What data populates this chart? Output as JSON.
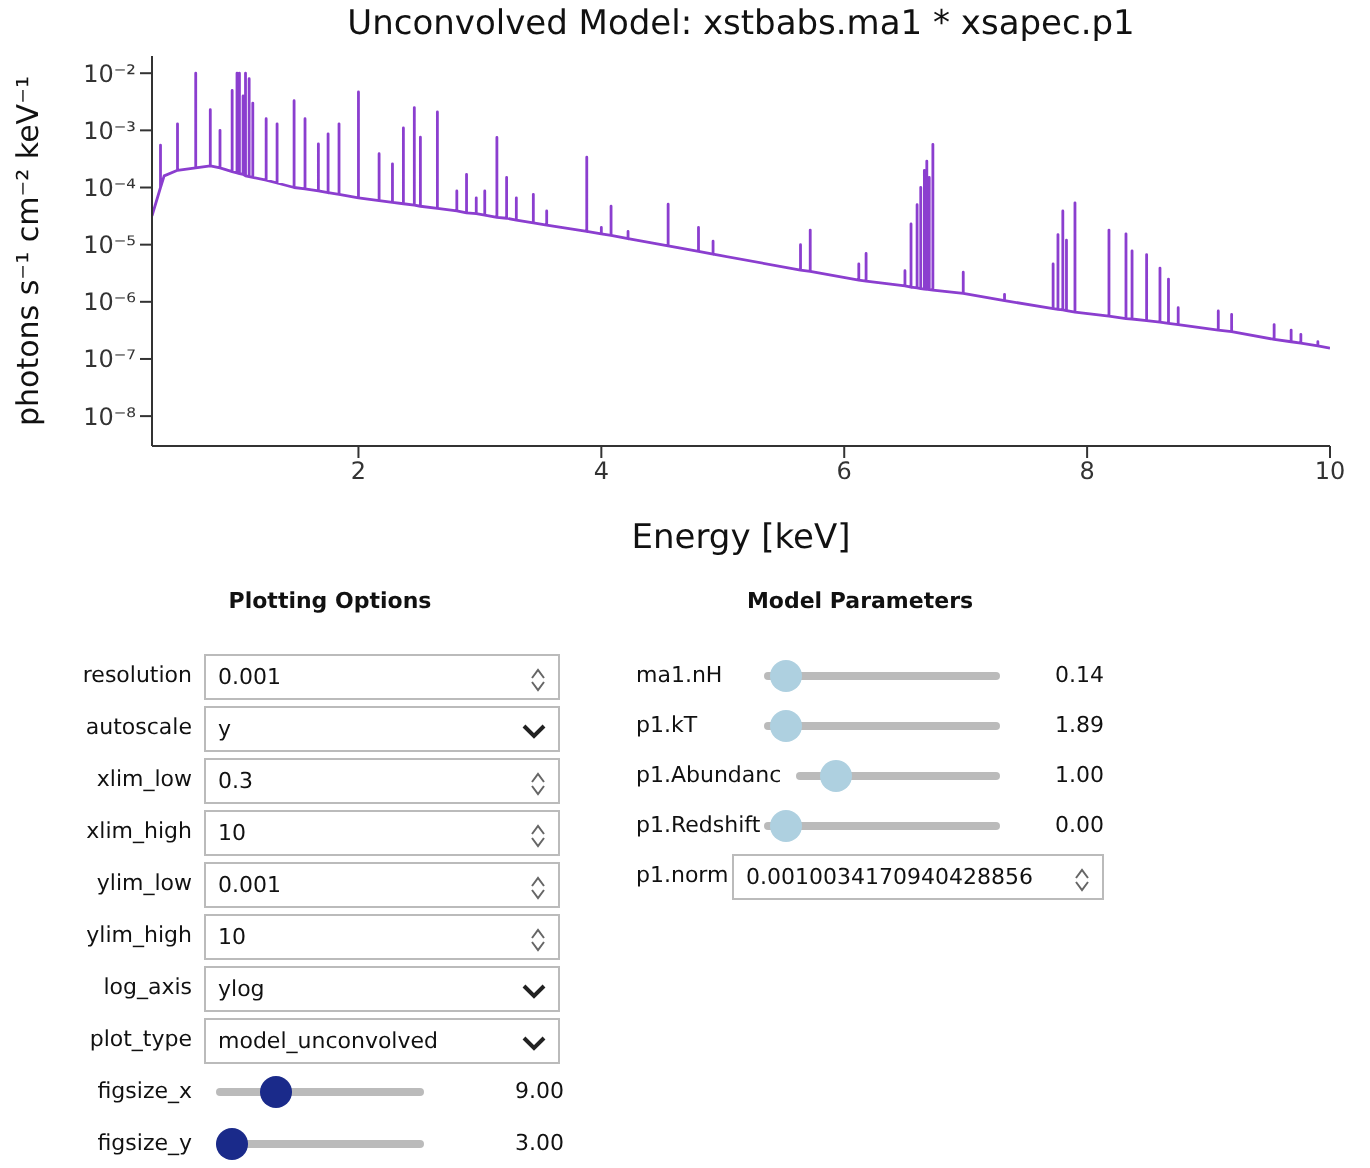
{
  "chart_data": [
    {
      "type": "line",
      "title": "Unconvolved Model: xstbabs.ma1 * xsapec.p1",
      "xlabel": "Energy [keV]",
      "ylabel": "photons s⁻¹ cm⁻² keV⁻¹",
      "log": "y",
      "grid": false,
      "legend": false,
      "marker": "none",
      "line_style": "solid",
      "xlim": [
        0.3,
        10
      ],
      "xticks": [
        2,
        4,
        6,
        8,
        10
      ],
      "ylim": [
        3e-09,
        0.02
      ],
      "yticks": [
        {
          "value": 1e-08,
          "label": "10⁻⁸"
        },
        {
          "value": 1e-07,
          "label": "10⁻⁷"
        },
        {
          "value": 1e-06,
          "label": "10⁻⁶"
        },
        {
          "value": 1e-05,
          "label": "10⁻⁵"
        },
        {
          "value": 0.0001,
          "label": "10⁻⁴"
        },
        {
          "value": 0.001,
          "label": "10⁻³"
        },
        {
          "value": 0.01,
          "label": "10⁻²"
        }
      ],
      "series": [
        {
          "color": "#8b3ecf",
          "x": [
            0.3,
            0.37,
            0.37,
            0.37,
            0.4,
            0.51,
            0.51,
            0.51,
            0.66,
            0.66,
            0.66,
            0.78,
            0.78,
            0.78,
            0.86,
            0.86,
            0.86,
            0.96,
            0.96,
            0.96,
            1.0,
            1.0,
            1.0,
            1.02,
            1.02,
            1.02,
            1.05,
            1.05,
            1.05,
            1.07,
            1.07,
            1.07,
            1.1,
            1.1,
            1.1,
            1.13,
            1.13,
            1.13,
            1.24,
            1.24,
            1.24,
            1.33,
            1.33,
            1.33,
            1.47,
            1.47,
            1.47,
            1.56,
            1.56,
            1.56,
            1.67,
            1.67,
            1.67,
            1.75,
            1.75,
            1.75,
            1.84,
            1.84,
            1.84,
            2.0,
            2.0,
            2.0,
            2.17,
            2.17,
            2.17,
            2.28,
            2.28,
            2.28,
            2.37,
            2.37,
            2.37,
            2.46,
            2.46,
            2.46,
            2.51,
            2.51,
            2.51,
            2.65,
            2.65,
            2.65,
            2.81,
            2.81,
            2.81,
            2.89,
            2.89,
            2.89,
            2.97,
            2.97,
            2.97,
            3.04,
            3.04,
            3.04,
            3.14,
            3.14,
            3.14,
            3.22,
            3.22,
            3.22,
            3.3,
            3.3,
            3.3,
            3.44,
            3.44,
            3.44,
            3.55,
            3.55,
            3.55,
            3.88,
            3.88,
            3.88,
            4.0,
            4.0,
            4.0,
            4.08,
            4.08,
            4.08,
            4.22,
            4.22,
            4.22,
            4.55,
            4.55,
            4.55,
            4.8,
            4.8,
            4.8,
            4.92,
            4.92,
            4.92,
            5.64,
            5.64,
            5.64,
            5.72,
            5.72,
            5.72,
            6.12,
            6.12,
            6.12,
            6.18,
            6.18,
            6.18,
            6.5,
            6.5,
            6.5,
            6.55,
            6.55,
            6.55,
            6.6,
            6.6,
            6.6,
            6.63,
            6.63,
            6.63,
            6.66,
            6.66,
            6.66,
            6.68,
            6.68,
            6.68,
            6.7,
            6.7,
            6.7,
            6.73,
            6.73,
            6.73,
            6.98,
            6.98,
            6.98,
            7.32,
            7.32,
            7.32,
            7.72,
            7.72,
            7.72,
            7.76,
            7.76,
            7.76,
            7.8,
            7.8,
            7.8,
            7.83,
            7.83,
            7.83,
            7.9,
            7.9,
            7.9,
            8.18,
            8.18,
            8.18,
            8.32,
            8.32,
            8.32,
            8.37,
            8.37,
            8.37,
            8.49,
            8.49,
            8.49,
            8.6,
            8.6,
            8.6,
            8.67,
            8.67,
            8.67,
            8.75,
            8.75,
            8.75,
            9.08,
            9.08,
            9.08,
            9.19,
            9.19,
            9.19,
            9.54,
            9.54,
            9.54,
            9.68,
            9.68,
            9.68,
            9.76,
            9.76,
            9.76,
            9.9,
            9.9,
            9.9,
            10
          ],
          "values": [
            3.2e-05,
            0.0001,
            0.00055,
            0.0001,
            0.00016,
            0.0002,
            0.0013,
            0.0002,
            0.00022,
            0.01,
            0.00022,
            0.00024,
            0.0023,
            0.00024,
            0.00022,
            0.001,
            0.00022,
            0.00019,
            0.005,
            0.00019,
            0.00018,
            0.01,
            0.00018,
            0.000175,
            0.01,
            0.000175,
            0.00017,
            0.004,
            0.00017,
            0.00016,
            0.01,
            0.00016,
            0.000155,
            0.008,
            0.000155,
            0.00015,
            0.003,
            0.00015,
            0.000135,
            0.0016,
            0.000135,
            0.00012,
            0.0013,
            0.00012,
            0.0001,
            0.0033,
            0.0001,
            9.5e-05,
            0.0016,
            9.5e-05,
            8.7e-05,
            0.00058,
            8.7e-05,
            8.1e-05,
            0.00087,
            8.1e-05,
            7.6e-05,
            0.0013,
            7.6e-05,
            6.6e-05,
            0.0047,
            6.6e-05,
            5.9e-05,
            0.00039,
            5.9e-05,
            5.5e-05,
            0.00026,
            5.5e-05,
            5.2e-05,
            0.0011,
            5.2e-05,
            4.9e-05,
            0.0025,
            4.9e-05,
            4.7e-05,
            0.00076,
            4.7e-05,
            4.3e-05,
            0.0021,
            4.3e-05,
            3.9e-05,
            8.7e-05,
            3.9e-05,
            3.6e-05,
            0.00017,
            3.6e-05,
            3.5e-05,
            6.6e-05,
            3.5e-05,
            3.3e-05,
            8.7e-05,
            3.3e-05,
            3e-05,
            0.00075,
            3e-05,
            2.9e-05,
            0.00015,
            2.9e-05,
            2.7e-05,
            6.6e-05,
            2.7e-05,
            2.4e-05,
            7.6e-05,
            2.4e-05,
            2.2e-05,
            3.9e-05,
            2.2e-05,
            1.7e-05,
            0.00034,
            1.7e-05,
            1.55e-05,
            2e-05,
            1.55e-05,
            1.45e-05,
            4.7e-05,
            1.45e-05,
            1.27e-05,
            1.7e-05,
            1.27e-05,
            9.5e-06,
            5.1e-05,
            9.5e-06,
            7.6e-06,
            2e-05,
            7.6e-06,
            6.8e-06,
            1.15e-05,
            6.8e-06,
            3.6e-06,
            1e-05,
            3.6e-06,
            3.4e-06,
            1.8e-05,
            3.4e-06,
            2.4e-06,
            4.6e-06,
            2.4e-06,
            2.3e-06,
            7e-06,
            2.3e-06,
            1.9e-06,
            3.5e-06,
            1.9e-06,
            1.8e-06,
            2.3e-05,
            1.8e-06,
            1.75e-06,
            5e-05,
            1.75e-06,
            1.7e-06,
            0.0001,
            1.7e-06,
            1.67e-06,
            0.0002,
            1.67e-06,
            1.66e-06,
            0.00029,
            1.66e-06,
            1.63e-06,
            0.00015,
            1.63e-06,
            1.6e-06,
            0.00057,
            1.6e-06,
            1.4e-06,
            3.3e-06,
            1.4e-06,
            1.05e-06,
            1.35e-06,
            1.05e-06,
            7.6e-07,
            4.6e-06,
            7.6e-07,
            7.4e-07,
            1.5e-05,
            7.4e-07,
            7.2e-07,
            3.9e-05,
            7.2e-07,
            7e-07,
            1.2e-05,
            7e-07,
            6.6e-07,
            5.4e-05,
            6.6e-07,
            5.6e-07,
            1.8e-05,
            5.6e-07,
            5.1e-07,
            1.55e-05,
            5.1e-07,
            5e-07,
            7.8e-06,
            5e-07,
            4.7e-07,
            6.7e-06,
            4.7e-07,
            4.4e-07,
            3.9e-06,
            4.4e-07,
            4.2e-07,
            2.5e-06,
            4.2e-07,
            4e-07,
            7.9e-07,
            4e-07,
            3.2e-07,
            6.9e-07,
            3.2e-07,
            3e-07,
            6e-07,
            3e-07,
            2.2e-07,
            4e-07,
            2.2e-07,
            2e-07,
            3.2e-07,
            2e-07,
            1.9e-07,
            2.7e-07,
            1.9e-07,
            1.7e-07,
            2e-07,
            1.7e-07,
            1.55e-07
          ]
        }
      ]
    },
    {
      "type": "other",
      "title": "Plotting Options",
      "annotations": [
        "resolution",
        "0.001",
        "autoscale",
        "y",
        "xlim_low",
        "0.3",
        "xlim_high",
        "10",
        "ylim_low",
        "0.001",
        "ylim_high",
        "10",
        "log_axis",
        "ylog",
        "plot_type",
        "model_unconvolved",
        "figsize_x",
        "9.00",
        "figsize_y",
        "3.00"
      ]
    },
    {
      "type": "other",
      "title": "Model Parameters",
      "annotations": [
        "ma1.nH",
        "0.14",
        "p1.kT",
        "1.89",
        "p1.Abundanc",
        "1.00",
        "p1.Redshift",
        "0.00",
        "p1.norm",
        "0.0010034170940428856"
      ]
    }
  ]
}
